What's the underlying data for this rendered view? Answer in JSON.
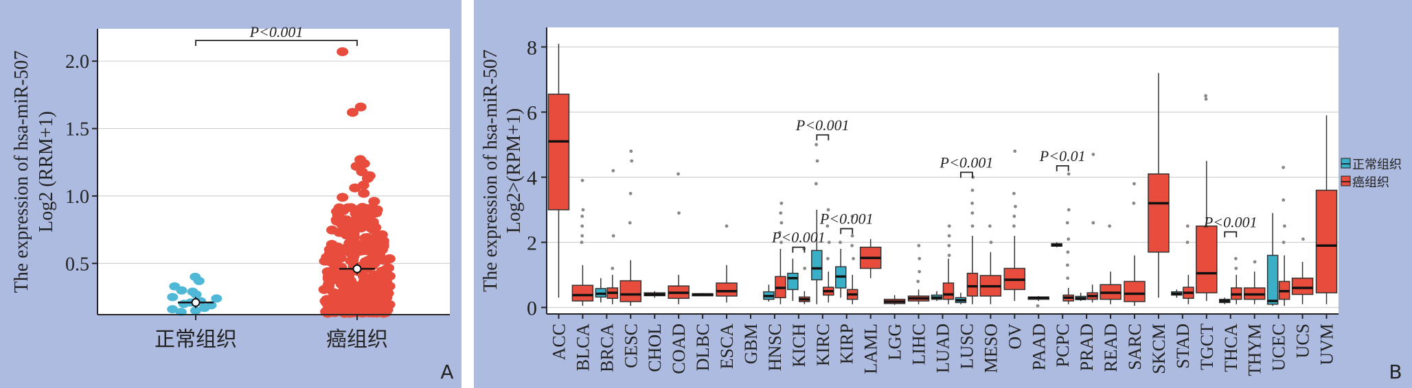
{
  "panel_a": {
    "letter": "A",
    "chart_data": {
      "type": "scatter",
      "ylabel_line1": "The expression of hsa-miR-507",
      "ylabel_line2": "Log2 (RRM+1)",
      "ylim": [
        0.12,
        2.24
      ],
      "yticks": [
        0.5,
        1.0,
        1.5,
        2.0
      ],
      "ytick_labels": [
        "0.5",
        "1.0",
        "1.5",
        "2.0"
      ],
      "grid": true,
      "categories": [
        "正常组织",
        "癌组织"
      ],
      "colors": [
        "#4fb8d6",
        "#e74c3c"
      ],
      "normal_points": [
        0.4,
        0.37,
        0.33,
        0.3,
        0.29,
        0.27,
        0.25,
        0.24,
        0.22,
        0.21,
        0.2,
        0.19,
        0.17,
        0.16,
        0.15,
        0.14
      ],
      "tumor_outliers": [
        2.07,
        1.66,
        1.62,
        1.27,
        1.24,
        1.22,
        1.18,
        1.15,
        1.13,
        1.08,
        1.06,
        1.02,
        0.99,
        0.96
      ],
      "tumor_dense_range": [
        0.13,
        0.92
      ],
      "means": [
        0.21,
        0.46
      ],
      "sig_label": "P<0.001"
    }
  },
  "panel_b": {
    "letter": "B",
    "chart_data": {
      "type": "box",
      "ylabel_line1": "The expression of hsa-miR-507",
      "ylabel_line2": "Log2>(RPM+1)",
      "ylim": [
        -0.2,
        8.6
      ],
      "yticks": [
        0,
        2,
        4,
        6,
        8
      ],
      "ytick_labels": [
        "0",
        "2",
        "4",
        "6",
        "8"
      ],
      "grid": true,
      "legend_position": "right",
      "legend": [
        {
          "label": "正常组织",
          "color": "#3ab0c8"
        },
        {
          "label": "癌组织",
          "color": "#e74c3c"
        }
      ],
      "categories": [
        "ACC",
        "BLCA",
        "BRCA",
        "CESC",
        "CHOL",
        "COAD",
        "DLBC",
        "ESCA",
        "GBM",
        "HNSC",
        "KICH",
        "KIRC",
        "KIRP",
        "LAML",
        "LGG",
        "LIHC",
        "LUAD",
        "LUSC",
        "MESO",
        "OV",
        "PAAD",
        "PCPC",
        "PRAD",
        "READ",
        "SARC",
        "SKCM",
        "STAD",
        "TGCT",
        "THCA",
        "THYM",
        "UCEC",
        "UCS",
        "UVM"
      ],
      "boxes": [
        {
          "cat": "ACC",
          "group": "tumor",
          "min": 0.3,
          "q1": 3.0,
          "median": 5.1,
          "q3": 6.55,
          "max": 8.1,
          "outliers": []
        },
        {
          "cat": "BLCA",
          "group": "tumor",
          "min": 0.05,
          "q1": 0.2,
          "median": 0.38,
          "q3": 0.68,
          "max": 1.3,
          "outliers": [
            2.0,
            2.2,
            2.5,
            2.8,
            3.0,
            3.9
          ]
        },
        {
          "cat": "BRCA",
          "group": "normal",
          "min": 0.15,
          "q1": 0.32,
          "median": 0.42,
          "q3": 0.58,
          "max": 0.9,
          "outliers": []
        },
        {
          "cat": "BRCA",
          "group": "tumor",
          "min": 0.1,
          "q1": 0.28,
          "median": 0.45,
          "q3": 0.6,
          "max": 1.0,
          "outliers": [
            1.2,
            2.2,
            4.2
          ]
        },
        {
          "cat": "CESC",
          "group": "tumor",
          "min": 0.05,
          "q1": 0.18,
          "median": 0.4,
          "q3": 0.82,
          "max": 1.45,
          "outliers": [
            2.6,
            3.5,
            4.5,
            4.8
          ]
        },
        {
          "cat": "CHOL",
          "group": "tumor",
          "min": 0.3,
          "q1": 0.36,
          "median": 0.4,
          "q3": 0.45,
          "max": 0.5,
          "outliers": []
        },
        {
          "cat": "COAD",
          "group": "tumor",
          "min": 0.1,
          "q1": 0.28,
          "median": 0.45,
          "q3": 0.66,
          "max": 1.0,
          "outliers": [
            2.9,
            4.1
          ]
        },
        {
          "cat": "DLBC",
          "group": "tumor",
          "min": 0.36,
          "q1": 0.38,
          "median": 0.4,
          "q3": 0.42,
          "max": 0.44,
          "outliers": []
        },
        {
          "cat": "ESCA",
          "group": "tumor",
          "min": 0.15,
          "q1": 0.35,
          "median": 0.5,
          "q3": 0.75,
          "max": 1.3,
          "outliers": [
            2.5
          ]
        },
        {
          "cat": "HNSC",
          "group": "normal",
          "min": 0.18,
          "q1": 0.25,
          "median": 0.35,
          "q3": 0.48,
          "max": 0.7,
          "outliers": []
        },
        {
          "cat": "HNSC",
          "group": "tumor",
          "min": 0.1,
          "q1": 0.3,
          "median": 0.6,
          "q3": 0.95,
          "max": 1.8,
          "outliers": [
            2.0,
            2.3,
            2.6,
            2.9,
            3.2
          ]
        },
        {
          "cat": "KICH",
          "group": "normal",
          "min": 0.2,
          "q1": 0.55,
          "median": 0.9,
          "q3": 1.05,
          "max": 1.5,
          "outliers": []
        },
        {
          "cat": "KICH",
          "group": "tumor",
          "min": 0.1,
          "q1": 0.18,
          "median": 0.25,
          "q3": 0.32,
          "max": 0.5,
          "outliers": [
            1.2,
            1.8
          ]
        },
        {
          "cat": "KIRC",
          "group": "normal",
          "min": 0.1,
          "q1": 0.85,
          "median": 1.2,
          "q3": 1.75,
          "max": 3.0,
          "outliers": [
            3.8,
            4.5,
            5.0
          ]
        },
        {
          "cat": "KIRC",
          "group": "tumor",
          "min": 0.15,
          "q1": 0.38,
          "median": 0.5,
          "q3": 0.62,
          "max": 1.1,
          "outliers": [
            1.5,
            2.0,
            2.5,
            3.0
          ]
        },
        {
          "cat": "KIRP",
          "group": "normal",
          "min": 0.3,
          "q1": 0.6,
          "median": 0.95,
          "q3": 1.25,
          "max": 1.8,
          "outliers": [
            2.0
          ]
        },
        {
          "cat": "KIRP",
          "group": "tumor",
          "min": 0.1,
          "q1": 0.25,
          "median": 0.4,
          "q3": 0.55,
          "max": 1.0,
          "outliers": [
            1.5,
            1.9,
            2.2,
            2.8
          ]
        },
        {
          "cat": "LAML",
          "group": "tumor",
          "min": 0.9,
          "q1": 1.2,
          "median": 1.52,
          "q3": 1.85,
          "max": 2.1,
          "outliers": []
        },
        {
          "cat": "LGG",
          "group": "tumor",
          "min": 0.08,
          "q1": 0.12,
          "median": 0.18,
          "q3": 0.25,
          "max": 0.38,
          "outliers": []
        },
        {
          "cat": "LIHC",
          "group": "tumor",
          "min": 0.1,
          "q1": 0.2,
          "median": 0.28,
          "q3": 0.35,
          "max": 0.55,
          "outliers": [
            0.8,
            1.1,
            1.5,
            1.9
          ]
        },
        {
          "cat": "LUAD",
          "group": "normal",
          "min": 0.2,
          "q1": 0.25,
          "median": 0.3,
          "q3": 0.38,
          "max": 0.5,
          "outliers": []
        },
        {
          "cat": "LUAD",
          "group": "tumor",
          "min": 0.1,
          "q1": 0.25,
          "median": 0.4,
          "q3": 0.75,
          "max": 1.5,
          "outliers": [
            1.6,
            1.9,
            2.2,
            2.5
          ]
        },
        {
          "cat": "LUSC",
          "group": "normal",
          "min": 0.1,
          "q1": 0.15,
          "median": 0.22,
          "q3": 0.3,
          "max": 0.45,
          "outliers": []
        },
        {
          "cat": "LUSC",
          "group": "tumor",
          "min": 0.1,
          "q1": 0.35,
          "median": 0.65,
          "q3": 1.05,
          "max": 2.2,
          "outliers": [
            2.5,
            2.9,
            3.2,
            3.6,
            4.0
          ]
        },
        {
          "cat": "MESO",
          "group": "tumor",
          "min": 0.1,
          "q1": 0.35,
          "median": 0.65,
          "q3": 0.98,
          "max": 1.7,
          "outliers": [
            2.0,
            2.5
          ]
        },
        {
          "cat": "OV",
          "group": "tumor",
          "min": 0.2,
          "q1": 0.55,
          "median": 0.85,
          "q3": 1.2,
          "max": 2.2,
          "outliers": [
            2.5,
            2.8,
            3.1,
            3.5,
            4.8
          ]
        },
        {
          "cat": "PAAD",
          "group": "tumor",
          "min": 0.2,
          "q1": 0.25,
          "median": 0.3,
          "q3": 0.32,
          "max": 0.35,
          "outliers": [
            0.05
          ]
        },
        {
          "cat": "PCPC",
          "group": "normal",
          "min": 1.85,
          "q1": 1.88,
          "median": 1.92,
          "q3": 1.96,
          "max": 2.0,
          "outliers": []
        },
        {
          "cat": "PCPC",
          "group": "tumor",
          "min": 0.1,
          "q1": 0.2,
          "median": 0.3,
          "q3": 0.38,
          "max": 0.6,
          "outliers": [
            0.9,
            1.3,
            1.7,
            2.1,
            2.6,
            3.0,
            4.1
          ]
        },
        {
          "cat": "PRAD",
          "group": "normal",
          "min": 0.2,
          "q1": 0.24,
          "median": 0.28,
          "q3": 0.34,
          "max": 0.45,
          "outliers": []
        },
        {
          "cat": "PRAD",
          "group": "tumor",
          "min": 0.15,
          "q1": 0.25,
          "median": 0.35,
          "q3": 0.45,
          "max": 0.7,
          "outliers": [
            2.6,
            4.7
          ]
        },
        {
          "cat": "READ",
          "group": "tumor",
          "min": 0.1,
          "q1": 0.25,
          "median": 0.45,
          "q3": 0.7,
          "max": 1.1,
          "outliers": [
            2.5
          ]
        },
        {
          "cat": "SARC",
          "group": "tumor",
          "min": 0.05,
          "q1": 0.18,
          "median": 0.42,
          "q3": 0.8,
          "max": 1.6,
          "outliers": [
            3.2,
            3.8
          ]
        },
        {
          "cat": "SKCM",
          "group": "tumor",
          "min": 0.3,
          "q1": 1.7,
          "median": 3.2,
          "q3": 4.1,
          "max": 7.2,
          "outliers": []
        },
        {
          "cat": "STAD",
          "group": "normal",
          "min": 0.3,
          "q1": 0.38,
          "median": 0.42,
          "q3": 0.48,
          "max": 0.55,
          "outliers": []
        },
        {
          "cat": "STAD",
          "group": "tumor",
          "min": 0.1,
          "q1": 0.28,
          "median": 0.45,
          "q3": 0.62,
          "max": 1.0,
          "outliers": [
            2.0,
            2.5
          ]
        },
        {
          "cat": "TGCT",
          "group": "tumor",
          "min": 0.2,
          "q1": 0.45,
          "median": 1.05,
          "q3": 2.5,
          "max": 4.5,
          "outliers": [
            6.4,
            6.5
          ]
        },
        {
          "cat": "THCA",
          "group": "normal",
          "min": 0.1,
          "q1": 0.15,
          "median": 0.2,
          "q3": 0.25,
          "max": 0.3,
          "outliers": []
        },
        {
          "cat": "THCA",
          "group": "tumor",
          "min": 0.1,
          "q1": 0.25,
          "median": 0.4,
          "q3": 0.6,
          "max": 1.0,
          "outliers": [
            1.2,
            1.5
          ]
        },
        {
          "cat": "THYM",
          "group": "tumor",
          "min": 0.1,
          "q1": 0.25,
          "median": 0.4,
          "q3": 0.6,
          "max": 1.1,
          "outliers": [
            1.4
          ]
        },
        {
          "cat": "UCEC",
          "group": "normal",
          "min": 0.05,
          "q1": 0.1,
          "median": 0.2,
          "q3": 1.6,
          "max": 2.9,
          "outliers": []
        },
        {
          "cat": "UCEC",
          "group": "tumor",
          "min": 0.05,
          "q1": 0.25,
          "median": 0.5,
          "q3": 0.8,
          "max": 1.6,
          "outliers": [
            2.0,
            2.5,
            3.3,
            4.3
          ]
        },
        {
          "cat": "UCS",
          "group": "tumor",
          "min": 0.1,
          "q1": 0.4,
          "median": 0.6,
          "q3": 0.9,
          "max": 1.4,
          "outliers": [
            2.1
          ]
        },
        {
          "cat": "UVM",
          "group": "tumor",
          "min": 0.1,
          "q1": 0.45,
          "median": 1.9,
          "q3": 3.6,
          "max": 5.9,
          "outliers": []
        }
      ],
      "significance": [
        {
          "cat": "KICH",
          "label": "P<0.001",
          "y": 1.85
        },
        {
          "cat": "KIRC",
          "label": "P<0.001",
          "y": 5.3
        },
        {
          "cat": "KIRP",
          "label": "P<0.001",
          "y": 2.42
        },
        {
          "cat": "LUSC",
          "label": "P<0.001",
          "y": 4.15
        },
        {
          "cat": "PCPC",
          "label": "P<0.01",
          "y": 4.35
        },
        {
          "cat": "THCA",
          "label": "P<0.001",
          "y": 2.32
        }
      ]
    }
  }
}
